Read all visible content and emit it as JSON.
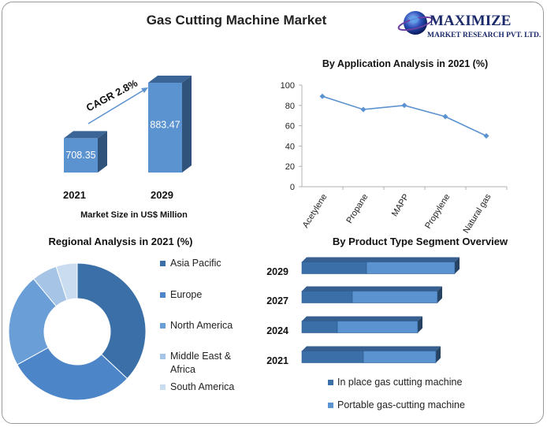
{
  "title": "Gas Cutting Machine Market",
  "logo": {
    "name": "MAXIMIZE",
    "tagline": "MARKET RESEARCH PVT. LTD.",
    "icon": "globe-icon"
  },
  "colors": {
    "dark_blue": "#3a6fa8",
    "mid_blue": "#4d86c8",
    "light_blue": "#8eb3de",
    "lighter_blue": "#c9dcf0",
    "line_blue": "#5b92d0"
  },
  "chart_data": [
    {
      "id": "market-size",
      "type": "bar",
      "categories": [
        "2021",
        "2029"
      ],
      "values": [
        708.35,
        883.47
      ],
      "value_labels": [
        "708.35",
        "883.47"
      ],
      "xlabel": "Market Size in US$ Million",
      "annotation": "CAGR 2.8%"
    },
    {
      "id": "application",
      "type": "line",
      "title": "By Application Analysis in 2021 (%)",
      "categories": [
        "Acetylene",
        "Propane",
        "MAPP",
        "Propylene",
        "Natural gas"
      ],
      "values": [
        89,
        76,
        80,
        69,
        50
      ],
      "ylim": [
        0,
        100
      ],
      "yticks": [
        "0",
        "20",
        "40",
        "60",
        "80",
        "100"
      ],
      "grid": false
    },
    {
      "id": "regional",
      "type": "pie",
      "title": "Regional Analysis in 2021 (%)",
      "labels": [
        "Asia Pacific",
        "Europe",
        "North America",
        "Middle East & Africa",
        "South America"
      ],
      "values": [
        37,
        30,
        22,
        6,
        5
      ],
      "colors": [
        "#3a6fa8",
        "#4d86c8",
        "#6a9ed6",
        "#a6c4e6",
        "#c9dcf0"
      ],
      "legend_position": "right"
    },
    {
      "id": "product-type",
      "type": "bar",
      "title": "By Product Type Segment Overview",
      "orientation": "horizontal",
      "stacked": true,
      "categories": [
        "2029",
        "2027",
        "2024",
        "2021"
      ],
      "series": [
        {
          "name": "In place gas cutting machine",
          "values": [
            82,
            64,
            45,
            78
          ]
        },
        {
          "name": "Portable gas-cutting machine",
          "values": [
            112,
            108,
            102,
            92
          ]
        }
      ],
      "legend_position": "bottom"
    }
  ]
}
